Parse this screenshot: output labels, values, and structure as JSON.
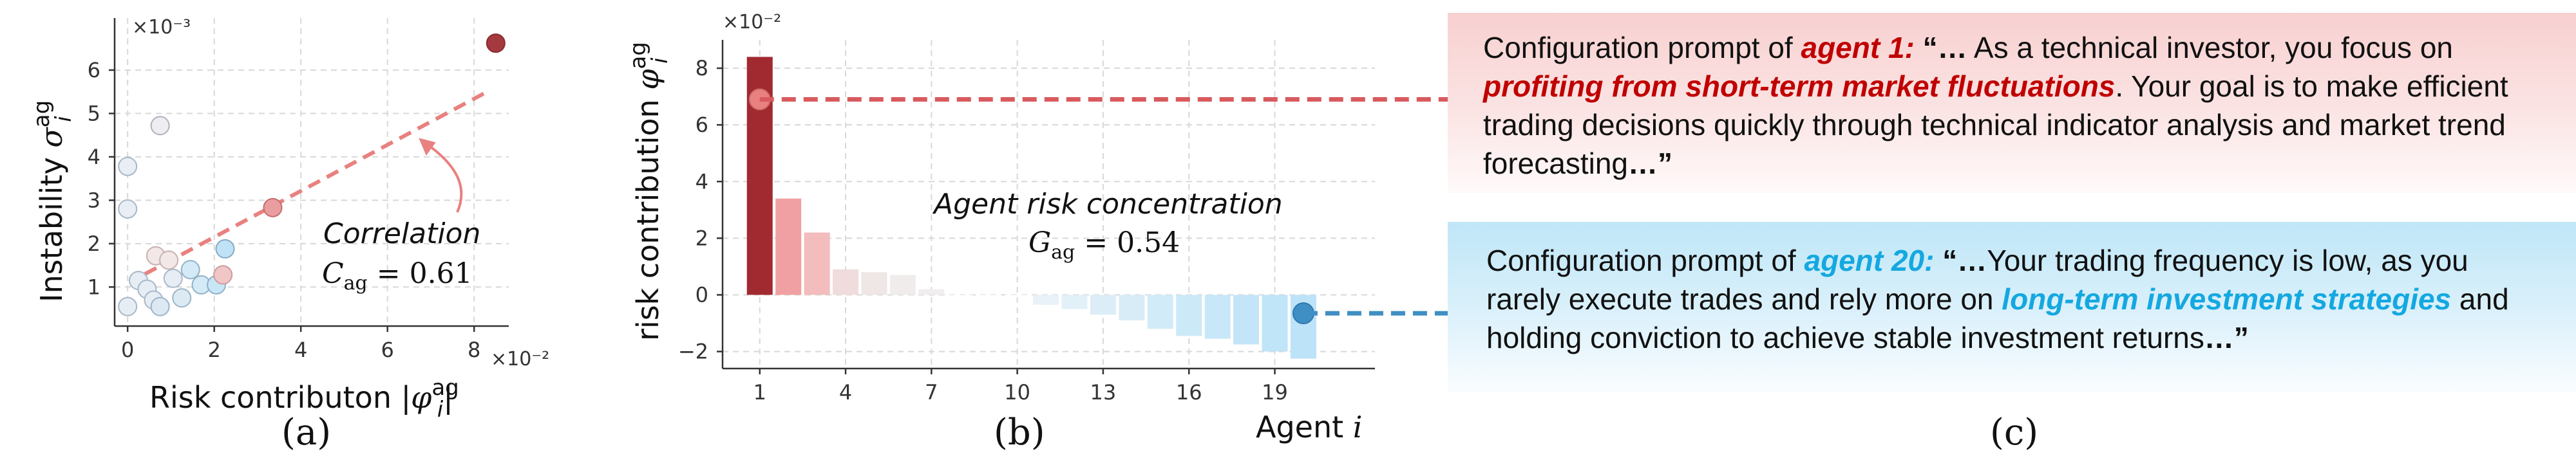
{
  "chart_data": [
    {
      "panel": "(a)",
      "type": "scatter",
      "xlabel": "Risk contributon |φ_i^ag|",
      "ylabel": "Instability σ_i^ag",
      "x_multiplier": "×10⁻²",
      "y_multiplier": "×10⁻³",
      "xlim": [
        -0.3,
        8.8
      ],
      "ylim": [
        0.1,
        7.2
      ],
      "xticks": [
        0,
        2,
        4,
        6,
        8
      ],
      "yticks": [
        1,
        2,
        3,
        4,
        5,
        6
      ],
      "grid": true,
      "points": [
        {
          "x": 8.5,
          "y": 6.62,
          "color": "#a43a3f",
          "edge": "#8a2a2e"
        },
        {
          "x": 3.35,
          "y": 2.83,
          "color": "#ea9d9f",
          "edge": "#c46c6e"
        },
        {
          "x": 0.0,
          "y": 3.78,
          "color": "#e8eef4",
          "edge": "#a9b8c8"
        },
        {
          "x": 0.0,
          "y": 2.8,
          "color": "#e8eef4",
          "edge": "#a9b8c8"
        },
        {
          "x": 0.75,
          "y": 4.72,
          "color": "#eeeef2",
          "edge": "#b0b0bc"
        },
        {
          "x": 0.0,
          "y": 0.55,
          "color": "#e6edf4",
          "edge": "#a9b8c8"
        },
        {
          "x": 0.25,
          "y": 1.15,
          "color": "#e6edf4",
          "edge": "#a9b8c8"
        },
        {
          "x": 0.45,
          "y": 0.95,
          "color": "#e6edf4",
          "edge": "#a9b8c8"
        },
        {
          "x": 0.6,
          "y": 0.7,
          "color": "#e6edf4",
          "edge": "#a9b8c8"
        },
        {
          "x": 0.75,
          "y": 0.55,
          "color": "#dce9f3",
          "edge": "#9db4c6"
        },
        {
          "x": 0.65,
          "y": 1.72,
          "color": "#f2e8e8",
          "edge": "#c8b0b0"
        },
        {
          "x": 0.95,
          "y": 1.62,
          "color": "#f2e8e8",
          "edge": "#c8b0b0"
        },
        {
          "x": 1.05,
          "y": 1.2,
          "color": "#e6edf4",
          "edge": "#a9b8c8"
        },
        {
          "x": 1.25,
          "y": 0.75,
          "color": "#dceaf4",
          "edge": "#9db4c6"
        },
        {
          "x": 1.45,
          "y": 1.4,
          "color": "#d4eaf6",
          "edge": "#93b2c6"
        },
        {
          "x": 1.7,
          "y": 1.05,
          "color": "#d4eaf6",
          "edge": "#93b2c6"
        },
        {
          "x": 2.05,
          "y": 1.05,
          "color": "#c8e6f6",
          "edge": "#8fb0c8"
        },
        {
          "x": 2.25,
          "y": 1.88,
          "color": "#bfe2f6",
          "edge": "#88aac4"
        },
        {
          "x": 2.2,
          "y": 1.28,
          "color": "#f1c6c6",
          "edge": "#cf9a9a"
        }
      ],
      "trendline": {
        "from": [
          0.4,
          1.3
        ],
        "to": [
          8.3,
          5.5
        ],
        "color": "#e8817f"
      },
      "annotation": {
        "line1": "Correlation",
        "line2_symbol": "C",
        "line2_sub": "ag",
        "line2_value": " = 0.61"
      }
    },
    {
      "panel": "(b)",
      "type": "bar",
      "xlabel_text": "Agent ",
      "xlabel_var": "i",
      "ylabel": "risk contribution φ_i^ag",
      "y_multiplier": "×10⁻²",
      "xlim": [
        -0.3,
        22.5
      ],
      "ylim": [
        -2.6,
        9.0
      ],
      "xticks": [
        1,
        4,
        7,
        10,
        13,
        16,
        19
      ],
      "yticks": [
        -2,
        0,
        2,
        4,
        6,
        8
      ],
      "grid": true,
      "categories": [
        1,
        2,
        3,
        4,
        5,
        6,
        7,
        8,
        9,
        10,
        11,
        12,
        13,
        14,
        15,
        16,
        17,
        18,
        19,
        20
      ],
      "values": [
        8.4,
        3.4,
        2.2,
        0.9,
        0.8,
        0.7,
        0.2,
        0.0,
        0.0,
        0.0,
        -0.35,
        -0.5,
        -0.7,
        -0.9,
        -1.2,
        -1.45,
        -1.55,
        -1.75,
        -2.0,
        -2.25
      ],
      "colors": [
        "#a02a30",
        "#f0a0a2",
        "#f3bcbd",
        "#f0dcdc",
        "#efe6e6",
        "#f0ecec",
        "#f0eeee",
        "#ffffff",
        "#ffffff",
        "#ffffff",
        "#e8f2f8",
        "#e2f0f8",
        "#dcedf8",
        "#d8ecf8",
        "#d2ebf8",
        "#cce9f8",
        "#c8e7f8",
        "#c4e5f8",
        "#c0e4f8",
        "#bde3f8"
      ],
      "marker_high": {
        "agent": 1,
        "value": 6.9,
        "color": "#e8817f",
        "edge": "#cc6b6b"
      },
      "marker_low": {
        "agent": 20,
        "value": -0.65,
        "color": "#3f8fc4",
        "edge": "#2f78ad"
      },
      "annotation": {
        "line1": "Agent risk concentration",
        "line2_symbol": "G",
        "line2_sub": "ag",
        "line2_value": " = 0.54"
      }
    }
  ],
  "panel_labels": {
    "a": "(a)",
    "b": "(b)",
    "c": "(c)"
  },
  "box1": {
    "prefix": "Configuration prompt of ",
    "agent": "agent 1:",
    "open": " “…",
    "text1": " As a technical investor, you focus on ",
    "highlight": "profiting from short-term market fluctuations",
    "text2": ". Your goal is to make efficient trading decisions quickly through technical indicator analysis and market trend forecasting",
    "close": "…”"
  },
  "box2": {
    "prefix": "Configuration prompt of ",
    "agent": "agent 20:",
    "open": " “…",
    "text1": "Your trading frequency is low, as you rarely execute trades and rely more on ",
    "highlight": "long-term investment strategies",
    "text2": " and holding conviction to achieve stable investment returns",
    "close": "…”"
  },
  "colors": {
    "red_dash": "#d85a5e",
    "blue_dash": "#3f8fc4"
  }
}
